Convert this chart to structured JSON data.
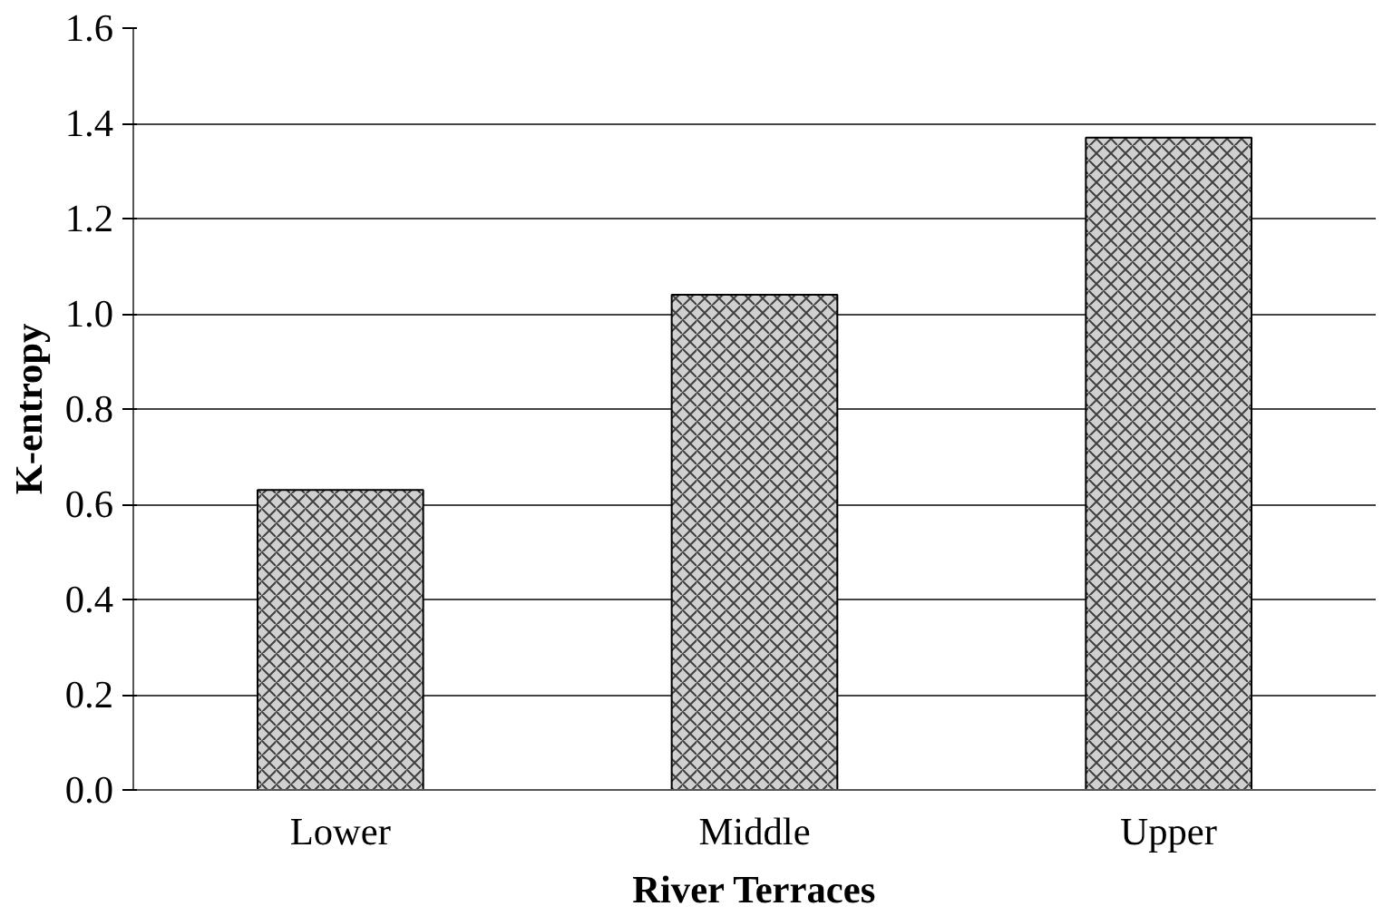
{
  "chart_data": {
    "type": "bar",
    "xlabel": "River Terraces",
    "ylabel": "K-entropy",
    "categories": [
      "Lower",
      "Middle",
      "Upper"
    ],
    "values": [
      0.63,
      1.04,
      1.37
    ],
    "color": "#d0d0d0",
    "ylim": [
      0,
      1.6
    ],
    "yticks": [
      {
        "value": 0,
        "label": "0.0"
      },
      {
        "value": 0.2,
        "label": "0.2"
      },
      {
        "value": 0.4,
        "label": "0.4"
      },
      {
        "value": 0.6,
        "label": "0.6"
      },
      {
        "value": 0.8,
        "label": "0.8"
      },
      {
        "value": 1.0,
        "label": "1.0"
      },
      {
        "value": 1.2,
        "label": "1.2"
      },
      {
        "value": 1.4,
        "label": "1.4"
      },
      {
        "value": 1.6,
        "label": "1.6"
      }
    ],
    "grid": "y"
  }
}
